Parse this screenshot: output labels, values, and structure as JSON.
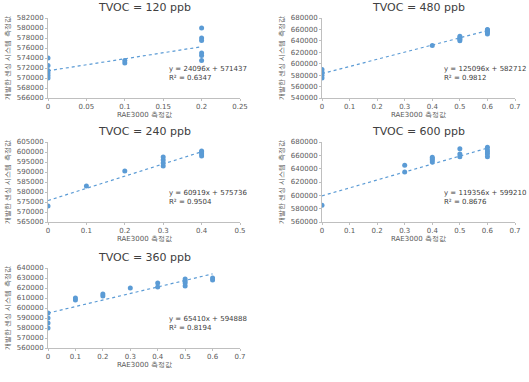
{
  "chart_data": [
    {
      "type": "scatter",
      "title": "TVOC = 120 ppb",
      "x_label": "RAE3000 측정값",
      "y_label": "개발한 센싱 시스템 측정값",
      "x": [
        0,
        0,
        0,
        0,
        0,
        0,
        0.1,
        0.1,
        0.2,
        0.2,
        0.2,
        0.2,
        0.2,
        0.2
      ],
      "values": [
        574000,
        572500,
        571500,
        571000,
        570500,
        570000,
        573500,
        573000,
        580000,
        578000,
        577500,
        575000,
        574500,
        573500
      ],
      "xlim": [
        0,
        0.25
      ],
      "xticks": [
        0,
        0.05,
        0.1,
        0.15,
        0.2,
        0.25
      ],
      "ylim": [
        566000,
        582000
      ],
      "yticks": [
        566000,
        568000,
        570000,
        572000,
        574000,
        576000,
        578000,
        580000,
        582000
      ],
      "trendline": {
        "slope": 24096,
        "intercept": 571437,
        "line_style": "dotted"
      },
      "annotations": [
        "y = 24096x + 571437",
        "R² = 0.6347"
      ],
      "color": "#5b9bd5",
      "marker": "circle",
      "grid": false
    },
    {
      "type": "scatter",
      "title": "TVOC = 480 ppb",
      "x_label": "RAE3000 측정값",
      "y_label": "개발한 센싱 시스템 측정값",
      "x": [
        0,
        0,
        0,
        0,
        0.4,
        0.5,
        0.5,
        0.5,
        0.5,
        0.6,
        0.6,
        0.6,
        0.6,
        0.6
      ],
      "values": [
        590000,
        585000,
        580000,
        575000,
        632000,
        640000,
        643000,
        645000,
        648000,
        652000,
        655000,
        657000,
        659000,
        660000
      ],
      "xlim": [
        0,
        0.7
      ],
      "xticks": [
        0,
        0.1,
        0.2,
        0.3,
        0.4,
        0.5,
        0.6,
        0.7
      ],
      "ylim": [
        540000,
        680000
      ],
      "yticks": [
        540000,
        560000,
        580000,
        600000,
        620000,
        640000,
        660000,
        680000
      ],
      "trendline": {
        "slope": 125096,
        "intercept": 582712,
        "line_style": "dotted"
      },
      "annotations": [
        "y = 125096x + 582712",
        "R² = 0.9812"
      ],
      "color": "#5b9bd5",
      "marker": "circle",
      "grid": false
    },
    {
      "type": "scatter",
      "title": "TVOC = 240 ppb",
      "x_label": "RAE3000 측정값",
      "y_label": "개발한 센싱 시스템 측정값",
      "x": [
        0,
        0.1,
        0.2,
        0.3,
        0.3,
        0.3,
        0.3,
        0.4,
        0.4,
        0.4,
        0.4
      ],
      "values": [
        573000,
        583000,
        590500,
        593000,
        594500,
        596000,
        597500,
        598000,
        599000,
        600000,
        600500
      ],
      "xlim": [
        0,
        0.5
      ],
      "xticks": [
        0,
        0.1,
        0.2,
        0.3,
        0.4,
        0.5
      ],
      "ylim": [
        565000,
        605000
      ],
      "yticks": [
        565000,
        570000,
        575000,
        580000,
        585000,
        590000,
        595000,
        600000,
        605000
      ],
      "trendline": {
        "slope": 60919,
        "intercept": 575736,
        "line_style": "dotted"
      },
      "annotations": [
        "y = 60919x + 575736",
        "R² = 0.9504"
      ],
      "color": "#5b9bd5",
      "marker": "circle",
      "grid": false
    },
    {
      "type": "scatter",
      "title": "TVOC = 600 ppb",
      "x_label": "RAE3000 측정값",
      "y_label": "개발한 센싱 시스템 측정값",
      "x": [
        0,
        0.3,
        0.3,
        0.4,
        0.4,
        0.4,
        0.4,
        0.5,
        0.5,
        0.5,
        0.6,
        0.6,
        0.6,
        0.6,
        0.6
      ],
      "values": [
        585000,
        635000,
        645000,
        650000,
        653000,
        655000,
        657000,
        658000,
        662000,
        670000,
        658000,
        662000,
        665000,
        668000,
        672000
      ],
      "xlim": [
        0,
        0.7
      ],
      "xticks": [
        0,
        0.1,
        0.2,
        0.3,
        0.4,
        0.5,
        0.6,
        0.7
      ],
      "ylim": [
        560000,
        680000
      ],
      "yticks": [
        560000,
        580000,
        600000,
        620000,
        640000,
        660000,
        680000
      ],
      "trendline": {
        "slope": 119356,
        "intercept": 599210,
        "line_style": "dotted"
      },
      "annotations": [
        "y = 119356x + 599210",
        "R² = 0.8676"
      ],
      "color": "#5b9bd5",
      "marker": "circle",
      "grid": false
    },
    {
      "type": "scatter",
      "title": "TVOC = 360 ppb",
      "x_label": "RAE3000 측정값",
      "y_label": "개발한 센싱 시스템 측정값",
      "x": [
        0,
        0,
        0,
        0,
        0.1,
        0.1,
        0.2,
        0.2,
        0.3,
        0.4,
        0.4,
        0.5,
        0.5,
        0.5,
        0.5,
        0.6,
        0.6
      ],
      "values": [
        595000,
        590000,
        585000,
        580000,
        608000,
        610000,
        612000,
        614000,
        620000,
        621000,
        625000,
        622000,
        625000,
        627000,
        629000,
        628000,
        630000
      ],
      "xlim": [
        0,
        0.7
      ],
      "xticks": [
        0,
        0.1,
        0.2,
        0.3,
        0.4,
        0.5,
        0.6,
        0.7
      ],
      "ylim": [
        560000,
        640000
      ],
      "yticks": [
        560000,
        570000,
        580000,
        590000,
        600000,
        610000,
        620000,
        630000,
        640000
      ],
      "trendline": {
        "slope": 65410,
        "intercept": 594888,
        "line_style": "dotted"
      },
      "annotations": [
        "y = 65410x + 594888",
        "R² = 0.8194"
      ],
      "color": "#5b9bd5",
      "marker": "circle",
      "grid": false
    }
  ]
}
